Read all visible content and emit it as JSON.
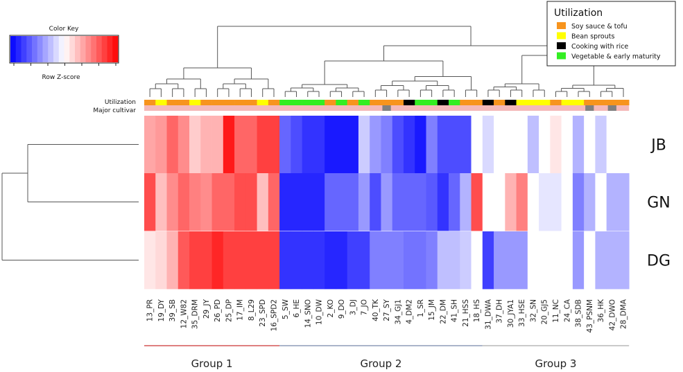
{
  "colors": {
    "soy": "#f7941d",
    "bean": "#ffff00",
    "rice": "#000000",
    "veg": "#33ee22",
    "cultivar_base": "#f4b9b9",
    "cultivar_mark": "#808080",
    "high": "#ff0000",
    "low": "#0000ff"
  },
  "color_key": {
    "title": "Color Key",
    "label": "Row Z-score"
  },
  "legend": {
    "title": "Utilization",
    "items": [
      {
        "label": "Soy sauce & tofu",
        "color": "#f7941d"
      },
      {
        "label": "Bean sprouts",
        "color": "#ffff00"
      },
      {
        "label": "Cooking with rice",
        "color": "#000000"
      },
      {
        "label": "Vegetable & early maturity",
        "color": "#33ee22"
      }
    ]
  },
  "side_labels": {
    "utilization": "Utilization",
    "cultivar": "Major cultivar"
  },
  "groups": [
    {
      "label": "Group 1",
      "color": "#cc3333",
      "first": 0,
      "last": 11
    },
    {
      "label": "Group 2",
      "color": "#7788aa",
      "first": 12,
      "last": 29
    },
    {
      "label": "Group 3",
      "color": "#aaaaaa",
      "first": 30,
      "last": 42
    }
  ],
  "chart_data": {
    "type": "heatmap",
    "title": "",
    "rows": [
      "JB",
      "GN",
      "DG"
    ],
    "columns": [
      "13_PR",
      "19_DY",
      "39_SB",
      "12_W82",
      "35_DRM",
      "29_JY",
      "26_PD",
      "25_DP",
      "17_IM",
      "8_L29",
      "23_SPD",
      "16_SPD2",
      "5_SW",
      "6_HE",
      "14_SNO",
      "10_DW",
      "2_KO",
      "9_DO",
      "3_DJ",
      "7_JO",
      "40_TK",
      "27_SY",
      "34_GJ1",
      "4_DM2",
      "1_SR",
      "15_JM",
      "22_DM",
      "41_SH",
      "21_HSS",
      "18_HS",
      "31_DWA",
      "37_DH",
      "30_JYA1",
      "33_HSE",
      "32_SN",
      "20_GJ5",
      "11_NC",
      "24_CA",
      "38_SDB",
      "43_PSNM",
      "36_HK",
      "42_DWO",
      "28_DMA"
    ],
    "utilization": [
      "soy",
      "bean",
      "soy",
      "soy",
      "bean",
      "soy",
      "soy",
      "soy",
      "soy",
      "soy",
      "bean",
      "soy",
      "veg",
      "veg",
      "veg",
      "veg",
      "soy",
      "veg",
      "soy",
      "veg",
      "soy",
      "soy",
      "soy",
      "rice",
      "veg",
      "veg",
      "rice",
      "veg",
      "soy",
      "soy",
      "rice",
      "soy",
      "rice",
      "bean",
      "bean",
      "bean",
      "soy",
      "bean",
      "bean",
      "soy",
      "soy",
      "soy",
      "soy"
    ],
    "major_cultivar": [
      0,
      0,
      0,
      0,
      0,
      0,
      0,
      0,
      0,
      0,
      0,
      0,
      0,
      0,
      0,
      0,
      0,
      0,
      0,
      0,
      0,
      1,
      0,
      0,
      0,
      0,
      0,
      0,
      0,
      0,
      0,
      0,
      0,
      0,
      0,
      0,
      0,
      0,
      0,
      1,
      0,
      1,
      0
    ],
    "values": [
      [
        0.35,
        0.4,
        0.6,
        0.45,
        0.2,
        0.3,
        0.3,
        0.9,
        0.6,
        0.6,
        0.75,
        0.75,
        -0.6,
        -0.7,
        -0.8,
        -0.8,
        -0.9,
        -0.9,
        -0.9,
        -0.2,
        -0.4,
        -0.5,
        -0.7,
        -0.8,
        -0.9,
        -0.5,
        -0.7,
        -0.7,
        -0.7,
        0.0,
        -0.15,
        0.0,
        0.0,
        0.0,
        -0.25,
        0.0,
        0.1,
        0.0,
        -0.3,
        0.0,
        -0.2,
        0.0,
        0.0
      ],
      [
        0.7,
        0.25,
        0.45,
        0.6,
        0.5,
        0.45,
        0.6,
        0.6,
        0.7,
        0.7,
        0.25,
        0.6,
        -0.85,
        -0.85,
        -0.85,
        -0.85,
        -0.6,
        -0.6,
        -0.6,
        -0.4,
        -0.7,
        -0.4,
        -0.6,
        -0.6,
        -0.6,
        -0.65,
        -0.8,
        -0.6,
        -0.3,
        0.7,
        0.0,
        0.0,
        0.3,
        0.5,
        0.0,
        -0.1,
        -0.1,
        0.0,
        -0.5,
        -0.3,
        0.0,
        -0.3,
        -0.3
      ],
      [
        0.1,
        0.15,
        0.3,
        0.65,
        0.75,
        0.75,
        0.85,
        0.75,
        0.75,
        0.75,
        0.75,
        0.75,
        -0.8,
        -0.8,
        -0.8,
        -0.8,
        -0.85,
        -0.85,
        -0.75,
        -0.75,
        -0.5,
        -0.5,
        -0.5,
        -0.55,
        -0.55,
        -0.5,
        -0.25,
        -0.25,
        -0.2,
        0.0,
        -0.75,
        -0.4,
        -0.4,
        -0.4,
        0.0,
        0.0,
        0.0,
        0.0,
        -0.4,
        0.0,
        -0.3,
        -0.3,
        -0.3
      ]
    ],
    "legend_placement": "top-right",
    "grid": false
  }
}
